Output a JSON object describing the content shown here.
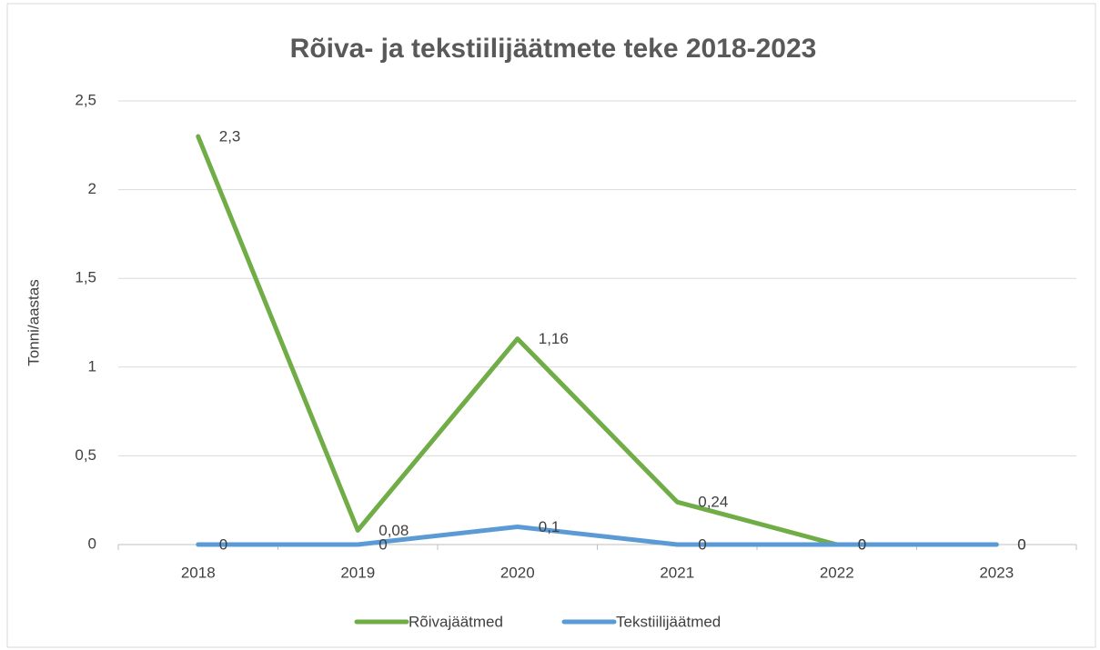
{
  "chart_data": {
    "type": "line",
    "title": "Rõiva- ja tekstiilijäätmete teke 2018-2023",
    "y_label": "Tonni/aastas",
    "categories": [
      "2018",
      "2019",
      "2020",
      "2021",
      "2022",
      "2023"
    ],
    "series": [
      {
        "name": "Rõivajäätmed",
        "color": "#70ad47",
        "values": [
          2.3,
          0.08,
          1.16,
          0.24,
          0,
          0
        ],
        "value_labels": [
          "2,3",
          "0,08",
          "1,16",
          "0,24",
          "0",
          "0"
        ]
      },
      {
        "name": "Tekstiilijäätmed",
        "color": "#5b9bd5",
        "values": [
          0,
          0,
          0.1,
          0,
          0,
          0
        ],
        "value_labels": [
          "0",
          "0",
          "0,1",
          "0",
          "0",
          "0"
        ]
      }
    ],
    "ylim": [
      0,
      2.5
    ],
    "yticks": [
      0,
      {
        "value": 0.5,
        "label": "0,5"
      },
      1,
      {
        "value": 1.5,
        "label": "1,5"
      },
      2,
      {
        "value": 2.5,
        "label": "2,5"
      }
    ],
    "grid": true,
    "legend": "bottom"
  }
}
